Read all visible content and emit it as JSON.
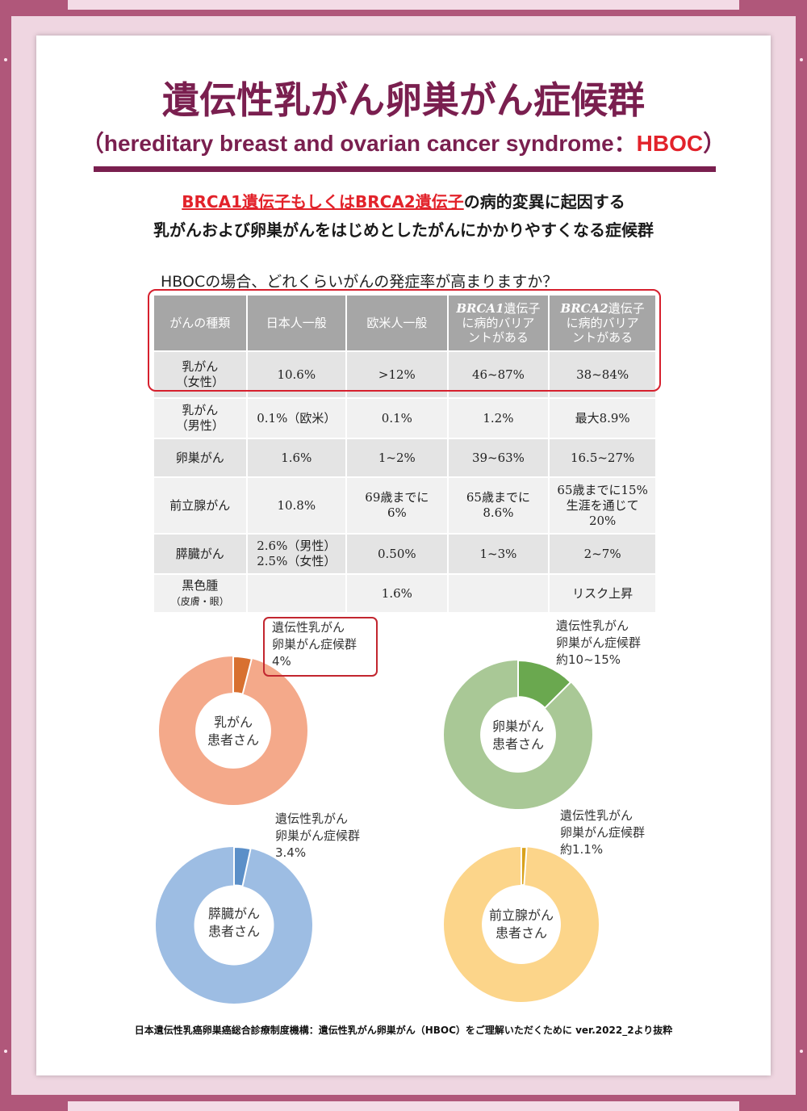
{
  "header": {
    "title": "遺伝性乳がん卵巣がん症候群",
    "subtitle_pre": "（hereditary breast and ovarian cancer syndrome：",
    "subtitle_hboc": "HBOC",
    "subtitle_post": "）"
  },
  "lead": {
    "line1_red": "BRCA1遺伝子もしくはBRCA2遺伝子",
    "line1_rest": "の病的変異に起因する",
    "line2": "乳がんおよび卵巣がんをはじめとしたがんにかかりやすくなる症候群"
  },
  "table": {
    "heading": "HBOCの場合、どれくらいがんの発症率が高まりますか？",
    "headers": {
      "type": "がんの種類",
      "japan": "日本人一般",
      "west": "欧米人一般",
      "brca1_gene": "BRCA1",
      "brca1_l1": "遺伝子",
      "brca1_l2": "に病的バリア",
      "brca1_l3": "ントがある",
      "brca2_gene": "BRCA2",
      "brca2_l1": "遺伝子",
      "brca2_l2": "に病的バリア",
      "brca2_l3": "ントがある"
    },
    "rows": [
      {
        "cat1": "乳がん",
        "cat2": "（女性）",
        "japan": "10.6%",
        "west": ">12%",
        "brca1": "46~87%",
        "brca2": "38~84%"
      },
      {
        "cat1": "乳がん",
        "cat2": "（男性）",
        "japan": "0.1%（欧米）",
        "west": "0.1%",
        "brca1": "1.2%",
        "brca2": "最大8.9%"
      },
      {
        "cat1": "卵巣がん",
        "japan": "1.6%",
        "west": "1~2%",
        "brca1": "39~63%",
        "brca2": "16.5~27%"
      },
      {
        "cat1": "前立腺がん",
        "japan": "10.8%",
        "west1": "69歳までに",
        "west2": "6%",
        "brca1_1": "65歳までに",
        "brca1_2": "8.6%",
        "brca2_1": "65歳までに15%",
        "brca2_2": "生涯を通じて",
        "brca2_3": "20%"
      },
      {
        "cat1": "膵臓がん",
        "japan1": "2.6%（男性）",
        "japan2": "2.5%（女性）",
        "west": "0.50%",
        "brca1": "1~3%",
        "brca2": "2~7%"
      },
      {
        "cat1": "黒色腫",
        "cat2": "（皮膚・眼）",
        "japan": "",
        "west": "1.6%",
        "brca1": "",
        "brca2": "リスク上昇"
      }
    ]
  },
  "donuts": [
    {
      "center1": "乳がん",
      "center2": "患者さん",
      "label1": "遺伝性乳がん",
      "label2": "卵巣がん症候群",
      "label3": "4%",
      "fraction": 0.04,
      "base_color": "#f4a98a",
      "slice_color": "#d87030"
    },
    {
      "center1": "卵巣がん",
      "center2": "患者さん",
      "label1": "遺伝性乳がん",
      "label2": "卵巣がん症候群",
      "label3": "約10~15%",
      "fraction": 0.125,
      "base_color": "#a9c896",
      "slice_color": "#6aa84f"
    },
    {
      "center1": "膵臓がん",
      "center2": "患者さん",
      "label1": "遺伝性乳がん",
      "label2": "卵巣がん症候群",
      "label3": "3.4%",
      "fraction": 0.034,
      "base_color": "#9dbde3",
      "slice_color": "#5b8fc8"
    },
    {
      "center1": "前立腺がん",
      "center2": "患者さん",
      "label1": "遺伝性乳がん",
      "label2": "卵巣がん症候群",
      "label3": "約1.1%",
      "fraction": 0.011,
      "base_color": "#fcd58a",
      "slice_color": "#d9a21d"
    }
  ],
  "source": "日本遺伝性乳癌卵巣癌総合診療制度機構：遺伝性乳がん卵巣がん（HBOC）をご理解いただくために ver.2022_2より抜粋",
  "colors": {
    "title": "#7a1f4f",
    "accent_red": "#e2222a",
    "frame": "#b0577a"
  }
}
